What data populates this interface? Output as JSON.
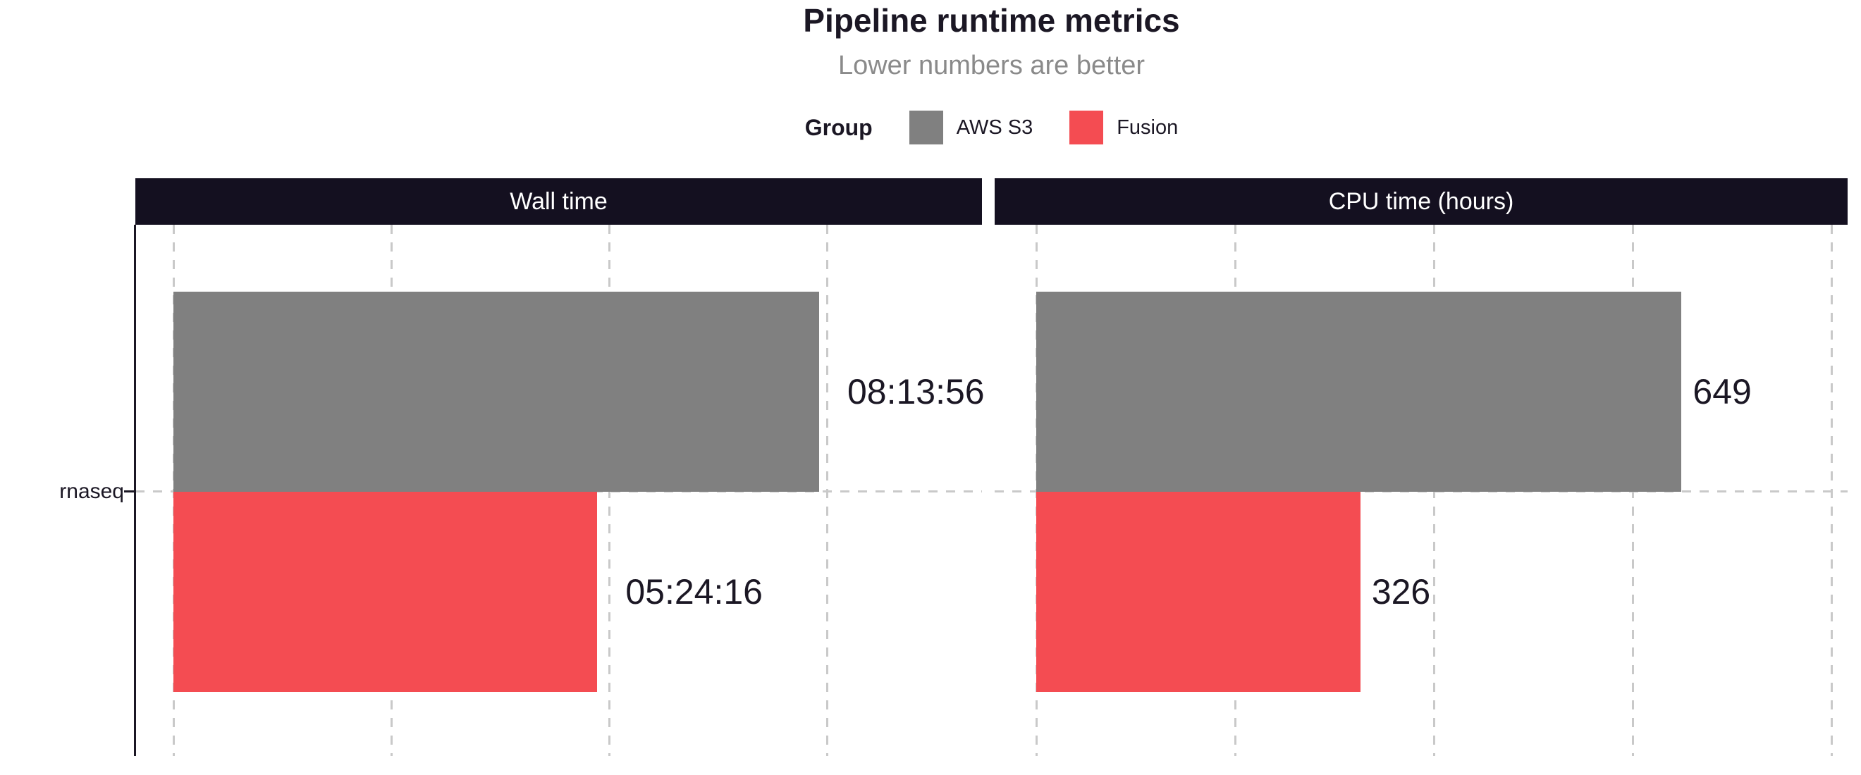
{
  "title": "Pipeline runtime metrics",
  "subtitle": "Lower numbers are better",
  "legend": {
    "title": "Group",
    "items": [
      {
        "label": "AWS S3",
        "color": "#808080"
      },
      {
        "label": "Fusion",
        "color": "#F44C52"
      }
    ]
  },
  "colors": {
    "strip_background": "#141020",
    "strip_text": "#FFFFFF",
    "grid": "#C9C9C9",
    "axis": "#1B1724",
    "title_text": "#1B1724",
    "subtitle_text": "#8A8A8A"
  },
  "chart_data": {
    "type": "bar",
    "orientation": "horizontal",
    "category": "rnaseq",
    "groups": [
      "AWS S3",
      "Fusion"
    ],
    "group_colors": {
      "AWS S3": "#808080",
      "Fusion": "#F44C52"
    },
    "legend_position": "top",
    "grid": "dashed, x only, no x tick labels",
    "panels": [
      {
        "title": "Wall time",
        "unit": "seconds",
        "grid_step": 10000,
        "xlim": [
          0,
          37000
        ],
        "bars": [
          {
            "group": "AWS S3",
            "value": 29636,
            "label": "08:13:56"
          },
          {
            "group": "Fusion",
            "value": 19456,
            "label": "05:24:16"
          }
        ]
      },
      {
        "title": "CPU time (hours)",
        "unit": "hours",
        "grid_step": 200,
        "xlim": [
          0,
          830
        ],
        "bars": [
          {
            "group": "AWS S3",
            "value": 649,
            "label": "649"
          },
          {
            "group": "Fusion",
            "value": 326,
            "label": "326"
          }
        ]
      }
    ]
  }
}
